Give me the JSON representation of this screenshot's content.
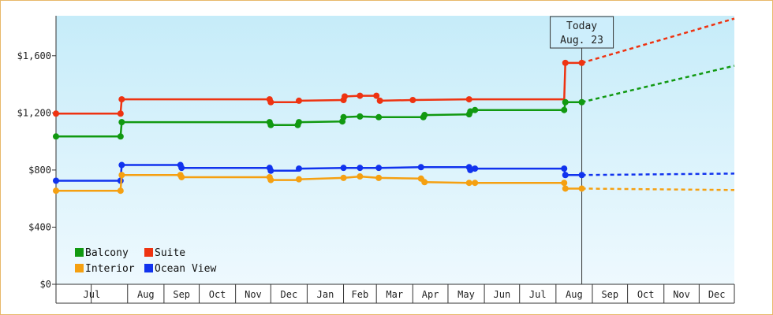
{
  "chart_data": {
    "type": "line",
    "title": "",
    "xlabel": "",
    "ylabel": "",
    "x_axis": {
      "type": "date",
      "range": [
        "2022-06-01",
        "2023-12-31"
      ],
      "tick_labels": [
        {
          "label": "Jul",
          "date": "2022-07-01"
        },
        {
          "label": "Aug",
          "date": "2022-08-01"
        },
        {
          "label": "Sep",
          "date": "2022-09-01"
        },
        {
          "label": "Oct",
          "date": "2022-10-01"
        },
        {
          "label": "Nov",
          "date": "2022-11-01"
        },
        {
          "label": "Dec",
          "date": "2022-12-01"
        },
        {
          "label": "Jan",
          "date": "2023-01-01"
        },
        {
          "label": "Feb",
          "date": "2023-02-01"
        },
        {
          "label": "Mar",
          "date": "2023-03-01"
        },
        {
          "label": "Apr",
          "date": "2023-04-01"
        },
        {
          "label": "May",
          "date": "2023-05-01"
        },
        {
          "label": "Jun",
          "date": "2023-06-01"
        },
        {
          "label": "Jul",
          "date": "2023-07-01"
        },
        {
          "label": "Aug",
          "date": "2023-08-01"
        },
        {
          "label": "Sep",
          "date": "2023-09-01"
        },
        {
          "label": "Oct",
          "date": "2023-10-01"
        },
        {
          "label": "Nov",
          "date": "2023-11-01"
        },
        {
          "label": "Dec",
          "date": "2023-12-01"
        }
      ]
    },
    "y_axis": {
      "range": [
        0,
        1880
      ],
      "ticks": [
        0,
        400,
        800,
        1200,
        1600
      ],
      "tick_labels": [
        "$0",
        "$400",
        "$800",
        "$1,200",
        "$1,600"
      ]
    },
    "grid": false,
    "line_style": "step",
    "today": {
      "date": "2023-08-23",
      "label_line1": "Today",
      "label_line2": "Aug. 23"
    },
    "legend": {
      "placement": "bottom-left",
      "entries": [
        {
          "label": "Balcony",
          "series": "Balcony"
        },
        {
          "label": "Suite",
          "series": "Suite"
        },
        {
          "label": "Interior",
          "series": "Interior"
        },
        {
          "label": "Ocean View",
          "series": "Ocean View"
        }
      ]
    },
    "series": [
      {
        "name": "Suite",
        "color": "#ee3311",
        "points": [
          {
            "x": "2022-06-01",
            "y": 1195
          },
          {
            "x": "2022-07-26",
            "y": 1195
          },
          {
            "x": "2022-07-27",
            "y": 1295
          },
          {
            "x": "2022-11-30",
            "y": 1295
          },
          {
            "x": "2022-12-01",
            "y": 1275
          },
          {
            "x": "2022-12-24",
            "y": 1275
          },
          {
            "x": "2022-12-25",
            "y": 1285
          },
          {
            "x": "2023-02-01",
            "y": 1290
          },
          {
            "x": "2023-02-02",
            "y": 1315
          },
          {
            "x": "2023-02-15",
            "y": 1320
          },
          {
            "x": "2023-03-01",
            "y": 1320
          },
          {
            "x": "2023-03-04",
            "y": 1285
          },
          {
            "x": "2023-04-01",
            "y": 1290
          },
          {
            "x": "2023-05-19",
            "y": 1295
          },
          {
            "x": "2023-08-08",
            "y": 1295
          },
          {
            "x": "2023-08-09",
            "y": 1550
          },
          {
            "x": "2023-08-23",
            "y": 1550
          }
        ],
        "projection": [
          {
            "x": "2023-08-23",
            "y": 1550
          },
          {
            "x": "2023-12-31",
            "y": 1860
          }
        ]
      },
      {
        "name": "Balcony",
        "color": "#119911",
        "points": [
          {
            "x": "2022-06-01",
            "y": 1035
          },
          {
            "x": "2022-07-26",
            "y": 1035
          },
          {
            "x": "2022-07-27",
            "y": 1135
          },
          {
            "x": "2022-11-30",
            "y": 1135
          },
          {
            "x": "2022-12-01",
            "y": 1115
          },
          {
            "x": "2022-12-24",
            "y": 1115
          },
          {
            "x": "2022-12-25",
            "y": 1135
          },
          {
            "x": "2023-01-31",
            "y": 1140
          },
          {
            "x": "2023-02-01",
            "y": 1170
          },
          {
            "x": "2023-02-15",
            "y": 1175
          },
          {
            "x": "2023-03-03",
            "y": 1170
          },
          {
            "x": "2023-04-10",
            "y": 1170
          },
          {
            "x": "2023-04-11",
            "y": 1185
          },
          {
            "x": "2023-05-19",
            "y": 1190
          },
          {
            "x": "2023-05-20",
            "y": 1210
          },
          {
            "x": "2023-05-24",
            "y": 1220
          },
          {
            "x": "2023-08-08",
            "y": 1220
          },
          {
            "x": "2023-08-09",
            "y": 1275
          },
          {
            "x": "2023-08-23",
            "y": 1275
          }
        ],
        "projection": [
          {
            "x": "2023-08-23",
            "y": 1275
          },
          {
            "x": "2023-12-31",
            "y": 1530
          }
        ]
      },
      {
        "name": "Ocean View",
        "color": "#1133ee",
        "points": [
          {
            "x": "2022-06-01",
            "y": 725
          },
          {
            "x": "2022-07-26",
            "y": 725
          },
          {
            "x": "2022-07-27",
            "y": 835
          },
          {
            "x": "2022-09-15",
            "y": 835
          },
          {
            "x": "2022-09-16",
            "y": 815
          },
          {
            "x": "2022-11-30",
            "y": 815
          },
          {
            "x": "2022-12-01",
            "y": 795
          },
          {
            "x": "2022-12-24",
            "y": 795
          },
          {
            "x": "2022-12-25",
            "y": 810
          },
          {
            "x": "2023-02-01",
            "y": 815
          },
          {
            "x": "2023-02-15",
            "y": 815
          },
          {
            "x": "2023-03-03",
            "y": 815
          },
          {
            "x": "2023-04-08",
            "y": 820
          },
          {
            "x": "2023-05-19",
            "y": 820
          },
          {
            "x": "2023-05-20",
            "y": 800
          },
          {
            "x": "2023-05-24",
            "y": 810
          },
          {
            "x": "2023-08-08",
            "y": 810
          },
          {
            "x": "2023-08-09",
            "y": 765
          },
          {
            "x": "2023-08-23",
            "y": 765
          }
        ],
        "projection": [
          {
            "x": "2023-08-23",
            "y": 765
          },
          {
            "x": "2023-12-31",
            "y": 775
          }
        ]
      },
      {
        "name": "Interior",
        "color": "#f5a011",
        "points": [
          {
            "x": "2022-06-01",
            "y": 655
          },
          {
            "x": "2022-07-26",
            "y": 655
          },
          {
            "x": "2022-07-27",
            "y": 765
          },
          {
            "x": "2022-09-15",
            "y": 765
          },
          {
            "x": "2022-09-16",
            "y": 750
          },
          {
            "x": "2022-11-30",
            "y": 750
          },
          {
            "x": "2022-12-01",
            "y": 730
          },
          {
            "x": "2022-12-24",
            "y": 730
          },
          {
            "x": "2022-12-25",
            "y": 735
          },
          {
            "x": "2023-02-01",
            "y": 745
          },
          {
            "x": "2023-02-15",
            "y": 755
          },
          {
            "x": "2023-03-03",
            "y": 745
          },
          {
            "x": "2023-04-08",
            "y": 740
          },
          {
            "x": "2023-04-10",
            "y": 740
          },
          {
            "x": "2023-04-11",
            "y": 715
          },
          {
            "x": "2023-05-19",
            "y": 710
          },
          {
            "x": "2023-05-24",
            "y": 710
          },
          {
            "x": "2023-08-08",
            "y": 710
          },
          {
            "x": "2023-08-09",
            "y": 670
          },
          {
            "x": "2023-08-23",
            "y": 670
          }
        ],
        "projection": [
          {
            "x": "2023-08-23",
            "y": 670
          },
          {
            "x": "2023-12-31",
            "y": 660
          }
        ]
      }
    ],
    "markers": {
      "Suite": [
        "2022-06-01",
        "2022-07-26",
        "2022-07-27",
        "2022-11-30",
        "2022-12-01",
        "2022-12-25",
        "2023-02-01",
        "2023-02-02",
        "2023-02-15",
        "2023-03-01",
        "2023-03-04",
        "2023-04-01",
        "2023-05-19",
        "2023-08-09",
        "2023-08-23"
      ],
      "Balcony": [
        "2022-06-01",
        "2022-07-26",
        "2022-07-27",
        "2022-11-30",
        "2022-12-01",
        "2022-12-24",
        "2022-12-25",
        "2023-01-31",
        "2023-02-01",
        "2023-02-15",
        "2023-03-03",
        "2023-04-10",
        "2023-04-11",
        "2023-05-19",
        "2023-05-20",
        "2023-05-24",
        "2023-08-08",
        "2023-08-09",
        "2023-08-23"
      ],
      "Ocean View": [
        "2022-06-01",
        "2022-07-26",
        "2022-07-27",
        "2022-09-15",
        "2022-09-16",
        "2022-11-30",
        "2022-12-01",
        "2022-12-25",
        "2023-02-01",
        "2023-02-15",
        "2023-03-03",
        "2023-04-08",
        "2023-05-19",
        "2023-05-20",
        "2023-05-24",
        "2023-08-08",
        "2023-08-09",
        "2023-08-23"
      ],
      "Interior": [
        "2022-06-01",
        "2022-07-26",
        "2022-07-27",
        "2022-09-15",
        "2022-09-16",
        "2022-11-30",
        "2022-12-01",
        "2022-12-25",
        "2023-02-01",
        "2023-02-15",
        "2023-03-03",
        "2023-04-08",
        "2023-04-11",
        "2023-05-19",
        "2023-05-24",
        "2023-08-08",
        "2023-08-09",
        "2023-08-23"
      ]
    }
  }
}
